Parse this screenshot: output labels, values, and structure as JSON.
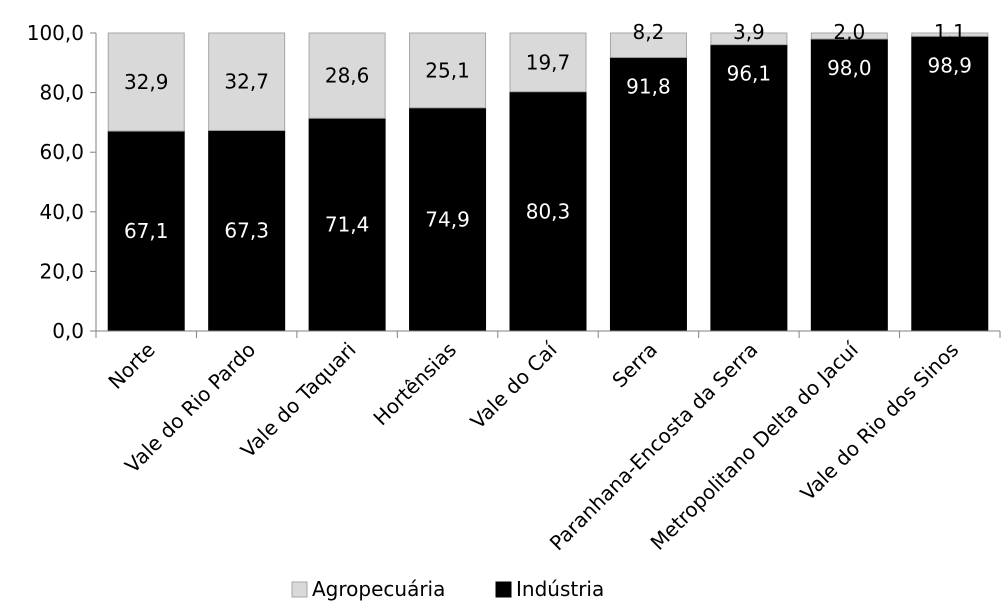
{
  "chart_data": {
    "type": "bar",
    "stacked": true,
    "categories": [
      "Norte",
      "Vale do Rio Pardo",
      "Vale do Taquari",
      "Hortênsias",
      "Vale do Caí",
      "Serra",
      "Paranhana-Encosta da Serra",
      "Metropolitano Delta do Jacuí",
      "Vale do Rio dos Sinos"
    ],
    "series": [
      {
        "name": "Indústria",
        "color": "#000000",
        "label_color": "#ffffff",
        "values": [
          67.1,
          67.3,
          71.4,
          74.9,
          80.3,
          91.8,
          96.1,
          98.0,
          98.9
        ],
        "labels": [
          "67,1",
          "67,3",
          "71,4",
          "74,9",
          "80,3",
          "91,8",
          "96,1",
          "98,0",
          "98,9"
        ]
      },
      {
        "name": "Agropecuária",
        "color": "#d9d9d9",
        "label_color": "#000000",
        "values": [
          32.9,
          32.7,
          28.6,
          25.1,
          19.7,
          8.2,
          3.9,
          2.0,
          1.1
        ],
        "labels": [
          "32,9",
          "32,7",
          "28,6",
          "25,1",
          "19,7",
          "8,2",
          "3,9",
          "2,0",
          "1,1"
        ]
      }
    ],
    "ylim": [
      0,
      100
    ],
    "yticks": [
      0,
      20,
      40,
      60,
      80,
      100
    ],
    "ytick_labels": [
      "0,0",
      "20,0",
      "40,0",
      "60,0",
      "80,0",
      "100,0"
    ],
    "legend": {
      "position": "bottom",
      "items": [
        {
          "label": "Agropecuária",
          "color": "#d9d9d9"
        },
        {
          "label": "Indústria",
          "color": "#000000"
        }
      ]
    },
    "grid": false,
    "title": "",
    "xlabel": "",
    "ylabel": ""
  }
}
